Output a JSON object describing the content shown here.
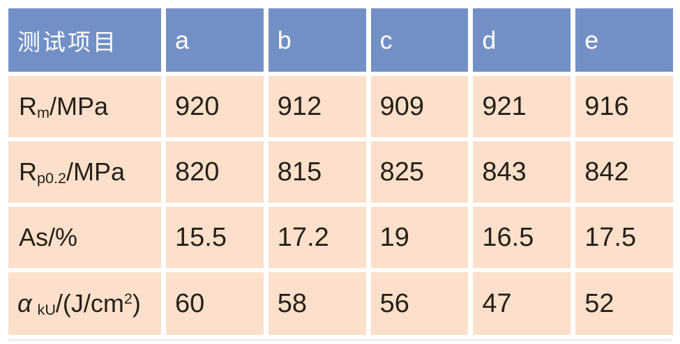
{
  "table": {
    "corner_label": "测试项目",
    "columns": [
      "a",
      "b",
      "c",
      "d",
      "e"
    ],
    "rows": [
      {
        "label": {
          "pre": "R",
          "sub": "m",
          "post": "/MPa"
        },
        "values": [
          "920",
          "912",
          "909",
          "921",
          "916"
        ]
      },
      {
        "label": {
          "pre": "R",
          "sub": "p0.2",
          "post": "/MPa"
        },
        "values": [
          "820",
          "815",
          "825",
          "843",
          "842"
        ]
      },
      {
        "label": {
          "pre": "As/%"
        },
        "values": [
          "15.5",
          "17.2",
          "19",
          "16.5",
          "17.5"
        ]
      },
      {
        "label": {
          "pre_italic": "α",
          "sub": " kU",
          "post": "/(J/cm",
          "sup": "2",
          "post2": ")"
        },
        "values": [
          "60",
          "58",
          "56",
          "47",
          "52"
        ]
      }
    ]
  },
  "colors": {
    "header_bg": "#7290c5",
    "header_text": "#ffffff",
    "cell_bg": "#fce0cb",
    "cell_text": "#262019",
    "gap": "#ffffff",
    "bottom_rule": "#e9eae5"
  }
}
